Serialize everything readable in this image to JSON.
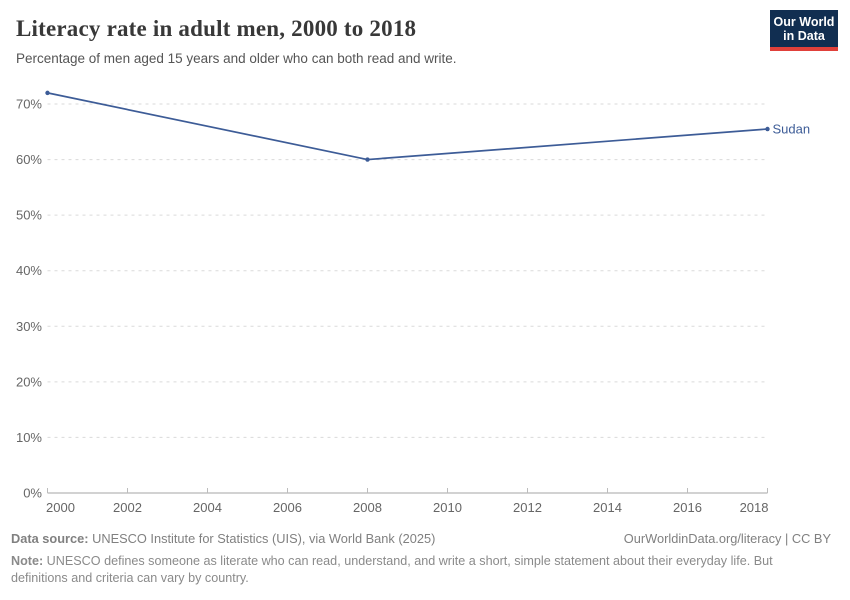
{
  "header": {
    "title": "Literacy rate in adult men, 2000 to 2018",
    "subtitle": "Percentage of men aged 15 years and older who can both read and write."
  },
  "logo": {
    "line1": "Our World",
    "line2": "in Data",
    "bg_color": "#112e51",
    "bar_color": "#e0403a"
  },
  "chart_data": {
    "type": "line",
    "title": "Literacy rate in adult men, 2000 to 2018",
    "x": [
      2000,
      2008,
      2018
    ],
    "series": [
      {
        "name": "Sudan",
        "color": "#3d5c97",
        "values": [
          72,
          60,
          65.5
        ]
      }
    ],
    "xlim": [
      2000,
      2018
    ],
    "ylim": [
      0,
      70
    ],
    "xtick_values": [
      2000,
      2002,
      2004,
      2006,
      2008,
      2010,
      2012,
      2014,
      2016,
      2018
    ],
    "xtick_labels": [
      "2000",
      "2002",
      "2004",
      "2006",
      "2008",
      "2010",
      "2012",
      "2014",
      "2016",
      "2018"
    ],
    "ytick_values": [
      0,
      10,
      20,
      30,
      40,
      50,
      60,
      70
    ],
    "ytick_labels": [
      "0%",
      "10%",
      "20%",
      "30%",
      "40%",
      "50%",
      "60%",
      "70%"
    ],
    "grid": "horizontal-dashed",
    "legend_position": "end-of-line-label",
    "gridline_color": "#dadada",
    "axis_color": "#a5a5a5",
    "tick_color": "#bcbcbc",
    "tick_label_color": "#666666"
  },
  "footer": {
    "source_label": "Data source:",
    "source_text": " UNESCO Institute for Statistics (UIS), via World Bank (2025)",
    "link": "OurWorldinData.org/literacy | CC BY",
    "note_label": "Note:",
    "note_text": " UNESCO defines someone as literate who can read, understand, and write a short, simple statement about their everyday life. But definitions and criteria can vary by country."
  }
}
